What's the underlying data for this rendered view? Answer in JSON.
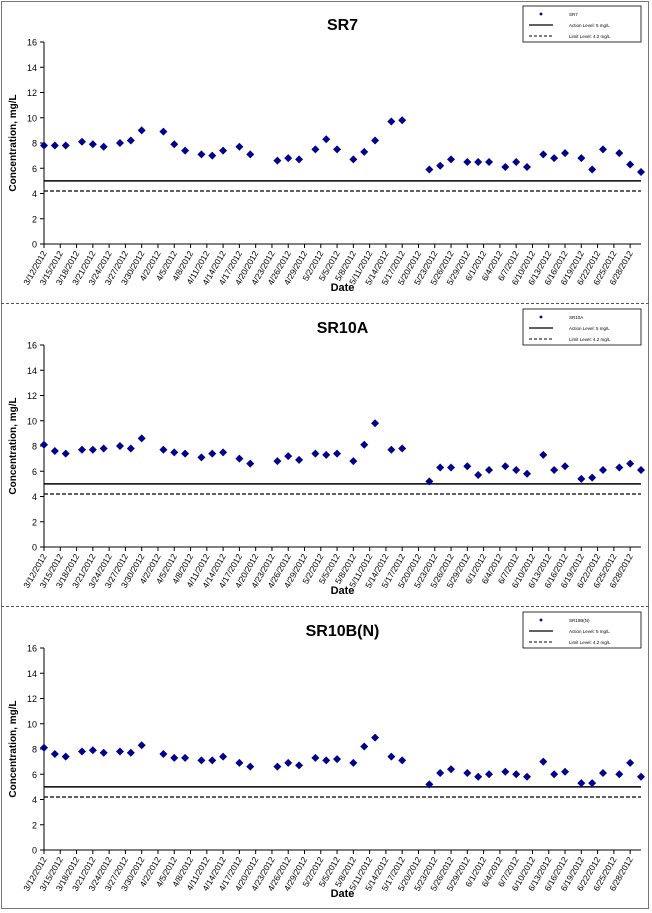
{
  "dates": [
    "3/12/2012",
    "3/15/2012",
    "3/18/2012",
    "3/21/2012",
    "3/24/2012",
    "3/27/2012",
    "3/30/2012",
    "4/2/2012",
    "4/5/2012",
    "4/8/2012",
    "4/11/2012",
    "4/14/2012",
    "4/17/2012",
    "4/20/2012",
    "4/23/2012",
    "4/26/2012",
    "4/29/2012",
    "5/2/2012",
    "5/5/2012",
    "5/8/2012",
    "5/11/2012",
    "5/14/2012",
    "5/17/2012",
    "5/20/2012",
    "5/23/2012",
    "5/26/2012",
    "5/29/2012",
    "6/1/2012",
    "6/4/2012",
    "6/7/2012",
    "6/10/2012",
    "6/13/2012",
    "6/16/2012",
    "6/19/2012",
    "6/22/2012",
    "6/25/2012",
    "6/28/2012"
  ],
  "chart_data": [
    {
      "type": "scatter",
      "title": "SR7",
      "xlabel": "Date",
      "ylabel": "Concentration, mg/L",
      "ylim": [
        0,
        16
      ],
      "yticks": [
        0,
        2,
        4,
        6,
        8,
        10,
        12,
        14,
        16
      ],
      "grid": false,
      "legend_position": "top-right",
      "legend": [
        "SR7",
        "Action Level: 5 mg/L",
        "Limit Level: 4.2 mg/L"
      ],
      "reference_lines": [
        {
          "name": "Action Level: 5 mg/L",
          "value": 5,
          "style": "solid"
        },
        {
          "name": "Limit Level: 4.2 mg/L",
          "value": 4.2,
          "style": "dashed"
        }
      ],
      "series": [
        {
          "name": "SR7",
          "color": "#00008b",
          "points": [
            [
              "3/12/2012",
              7.8
            ],
            [
              "3/14/2012",
              7.8
            ],
            [
              "3/16/2012",
              7.8
            ],
            [
              "3/19/2012",
              8.1
            ],
            [
              "3/21/2012",
              7.9
            ],
            [
              "3/23/2012",
              7.7
            ],
            [
              "3/26/2012",
              8.0
            ],
            [
              "3/28/2012",
              8.2
            ],
            [
              "3/30/2012",
              9.0
            ],
            [
              "4/3/2012",
              8.9
            ],
            [
              "4/5/2012",
              7.9
            ],
            [
              "4/7/2012",
              7.4
            ],
            [
              "4/10/2012",
              7.1
            ],
            [
              "4/12/2012",
              7.0
            ],
            [
              "4/14/2012",
              7.4
            ],
            [
              "4/17/2012",
              7.7
            ],
            [
              "4/19/2012",
              7.1
            ],
            [
              "4/24/2012",
              6.6
            ],
            [
              "4/26/2012",
              6.8
            ],
            [
              "4/28/2012",
              6.7
            ],
            [
              "5/1/2012",
              7.5
            ],
            [
              "5/3/2012",
              8.3
            ],
            [
              "5/5/2012",
              7.5
            ],
            [
              "5/8/2012",
              6.7
            ],
            [
              "5/10/2012",
              7.3
            ],
            [
              "5/12/2012",
              8.2
            ],
            [
              "5/15/2012",
              9.7
            ],
            [
              "5/17/2012",
              9.8
            ],
            [
              "5/22/2012",
              5.9
            ],
            [
              "5/24/2012",
              6.2
            ],
            [
              "5/26/2012",
              6.7
            ],
            [
              "5/29/2012",
              6.5
            ],
            [
              "5/31/2012",
              6.5
            ],
            [
              "6/2/2012",
              6.5
            ],
            [
              "6/5/2012",
              6.1
            ],
            [
              "6/7/2012",
              6.5
            ],
            [
              "6/9/2012",
              6.1
            ],
            [
              "6/12/2012",
              7.1
            ],
            [
              "6/14/2012",
              6.8
            ],
            [
              "6/16/2012",
              7.2
            ],
            [
              "6/19/2012",
              6.8
            ],
            [
              "6/21/2012",
              5.9
            ],
            [
              "6/23/2012",
              7.5
            ],
            [
              "6/26/2012",
              7.2
            ],
            [
              "6/28/2012",
              6.3
            ],
            [
              "6/30/2012",
              5.7
            ]
          ]
        }
      ]
    },
    {
      "type": "scatter",
      "title": "SR10A",
      "xlabel": "Date",
      "ylabel": "Concentration, mg/L",
      "ylim": [
        0,
        16
      ],
      "yticks": [
        0,
        2,
        4,
        6,
        8,
        10,
        12,
        14,
        16
      ],
      "grid": false,
      "legend_position": "top-right",
      "legend": [
        "SR10A",
        "Action Level: 5 mg/L",
        "Limit Level: 4.2 mg/L"
      ],
      "reference_lines": [
        {
          "name": "Action Level: 5 mg/L",
          "value": 5,
          "style": "solid"
        },
        {
          "name": "Limit Level: 4.2 mg/L",
          "value": 4.2,
          "style": "dashed"
        }
      ],
      "series": [
        {
          "name": "SR10A",
          "color": "#00008b",
          "points": [
            [
              "3/12/2012",
              8.1
            ],
            [
              "3/14/2012",
              7.6
            ],
            [
              "3/16/2012",
              7.4
            ],
            [
              "3/19/2012",
              7.7
            ],
            [
              "3/21/2012",
              7.7
            ],
            [
              "3/23/2012",
              7.8
            ],
            [
              "3/26/2012",
              8.0
            ],
            [
              "3/28/2012",
              7.8
            ],
            [
              "3/30/2012",
              8.6
            ],
            [
              "4/3/2012",
              7.7
            ],
            [
              "4/5/2012",
              7.5
            ],
            [
              "4/7/2012",
              7.4
            ],
            [
              "4/10/2012",
              7.1
            ],
            [
              "4/12/2012",
              7.4
            ],
            [
              "4/14/2012",
              7.5
            ],
            [
              "4/17/2012",
              7.0
            ],
            [
              "4/19/2012",
              6.6
            ],
            [
              "4/24/2012",
              6.8
            ],
            [
              "4/26/2012",
              7.2
            ],
            [
              "4/28/2012",
              6.9
            ],
            [
              "5/1/2012",
              7.4
            ],
            [
              "5/3/2012",
              7.3
            ],
            [
              "5/5/2012",
              7.4
            ],
            [
              "5/8/2012",
              6.8
            ],
            [
              "5/10/2012",
              8.1
            ],
            [
              "5/12/2012",
              9.8
            ],
            [
              "5/15/2012",
              7.7
            ],
            [
              "5/17/2012",
              7.8
            ],
            [
              "5/22/2012",
              5.2
            ],
            [
              "5/24/2012",
              6.3
            ],
            [
              "5/26/2012",
              6.3
            ],
            [
              "5/29/2012",
              6.4
            ],
            [
              "5/31/2012",
              5.7
            ],
            [
              "6/2/2012",
              6.1
            ],
            [
              "6/5/2012",
              6.4
            ],
            [
              "6/7/2012",
              6.1
            ],
            [
              "6/9/2012",
              5.8
            ],
            [
              "6/12/2012",
              7.3
            ],
            [
              "6/14/2012",
              6.1
            ],
            [
              "6/16/2012",
              6.4
            ],
            [
              "6/19/2012",
              5.4
            ],
            [
              "6/21/2012",
              5.5
            ],
            [
              "6/23/2012",
              6.1
            ],
            [
              "6/26/2012",
              6.3
            ],
            [
              "6/28/2012",
              6.6
            ],
            [
              "6/30/2012",
              6.1
            ]
          ]
        }
      ]
    },
    {
      "type": "scatter",
      "title": "SR10B(N)",
      "xlabel": "Date",
      "ylabel": "Concentration, mg/L",
      "ylim": [
        0,
        16
      ],
      "yticks": [
        0,
        2,
        4,
        6,
        8,
        10,
        12,
        14,
        16
      ],
      "grid": false,
      "legend_position": "top-right",
      "legend": [
        "SR10B(N)",
        "Action Level: 5 mg/L",
        "Limit Level: 4.2 mg/L"
      ],
      "reference_lines": [
        {
          "name": "Action Level: 5 mg/L",
          "value": 5,
          "style": "solid"
        },
        {
          "name": "Limit Level: 4.2 mg/L",
          "value": 4.2,
          "style": "dashed"
        }
      ],
      "series": [
        {
          "name": "SR10B(N)",
          "color": "#00008b",
          "points": [
            [
              "3/12/2012",
              8.1
            ],
            [
              "3/14/2012",
              7.6
            ],
            [
              "3/16/2012",
              7.4
            ],
            [
              "3/19/2012",
              7.8
            ],
            [
              "3/21/2012",
              7.9
            ],
            [
              "3/23/2012",
              7.7
            ],
            [
              "3/26/2012",
              7.8
            ],
            [
              "3/28/2012",
              7.7
            ],
            [
              "3/30/2012",
              8.3
            ],
            [
              "4/3/2012",
              7.6
            ],
            [
              "4/5/2012",
              7.3
            ],
            [
              "4/7/2012",
              7.3
            ],
            [
              "4/10/2012",
              7.1
            ],
            [
              "4/12/2012",
              7.1
            ],
            [
              "4/14/2012",
              7.4
            ],
            [
              "4/17/2012",
              6.9
            ],
            [
              "4/19/2012",
              6.6
            ],
            [
              "4/24/2012",
              6.6
            ],
            [
              "4/26/2012",
              6.9
            ],
            [
              "4/28/2012",
              6.7
            ],
            [
              "5/1/2012",
              7.3
            ],
            [
              "5/3/2012",
              7.1
            ],
            [
              "5/5/2012",
              7.2
            ],
            [
              "5/8/2012",
              6.9
            ],
            [
              "5/10/2012",
              8.2
            ],
            [
              "5/12/2012",
              8.9
            ],
            [
              "5/15/2012",
              7.4
            ],
            [
              "5/17/2012",
              7.1
            ],
            [
              "5/22/2012",
              5.2
            ],
            [
              "5/24/2012",
              6.1
            ],
            [
              "5/26/2012",
              6.4
            ],
            [
              "5/29/2012",
              6.1
            ],
            [
              "5/31/2012",
              5.8
            ],
            [
              "6/2/2012",
              6.0
            ],
            [
              "6/5/2012",
              6.2
            ],
            [
              "6/7/2012",
              6.0
            ],
            [
              "6/9/2012",
              5.8
            ],
            [
              "6/12/2012",
              7.0
            ],
            [
              "6/14/2012",
              6.0
            ],
            [
              "6/16/2012",
              6.2
            ],
            [
              "6/19/2012",
              5.3
            ],
            [
              "6/21/2012",
              5.3
            ],
            [
              "6/23/2012",
              6.1
            ],
            [
              "6/26/2012",
              6.0
            ],
            [
              "6/28/2012",
              6.9
            ],
            [
              "6/30/2012",
              5.8
            ]
          ]
        }
      ]
    }
  ]
}
